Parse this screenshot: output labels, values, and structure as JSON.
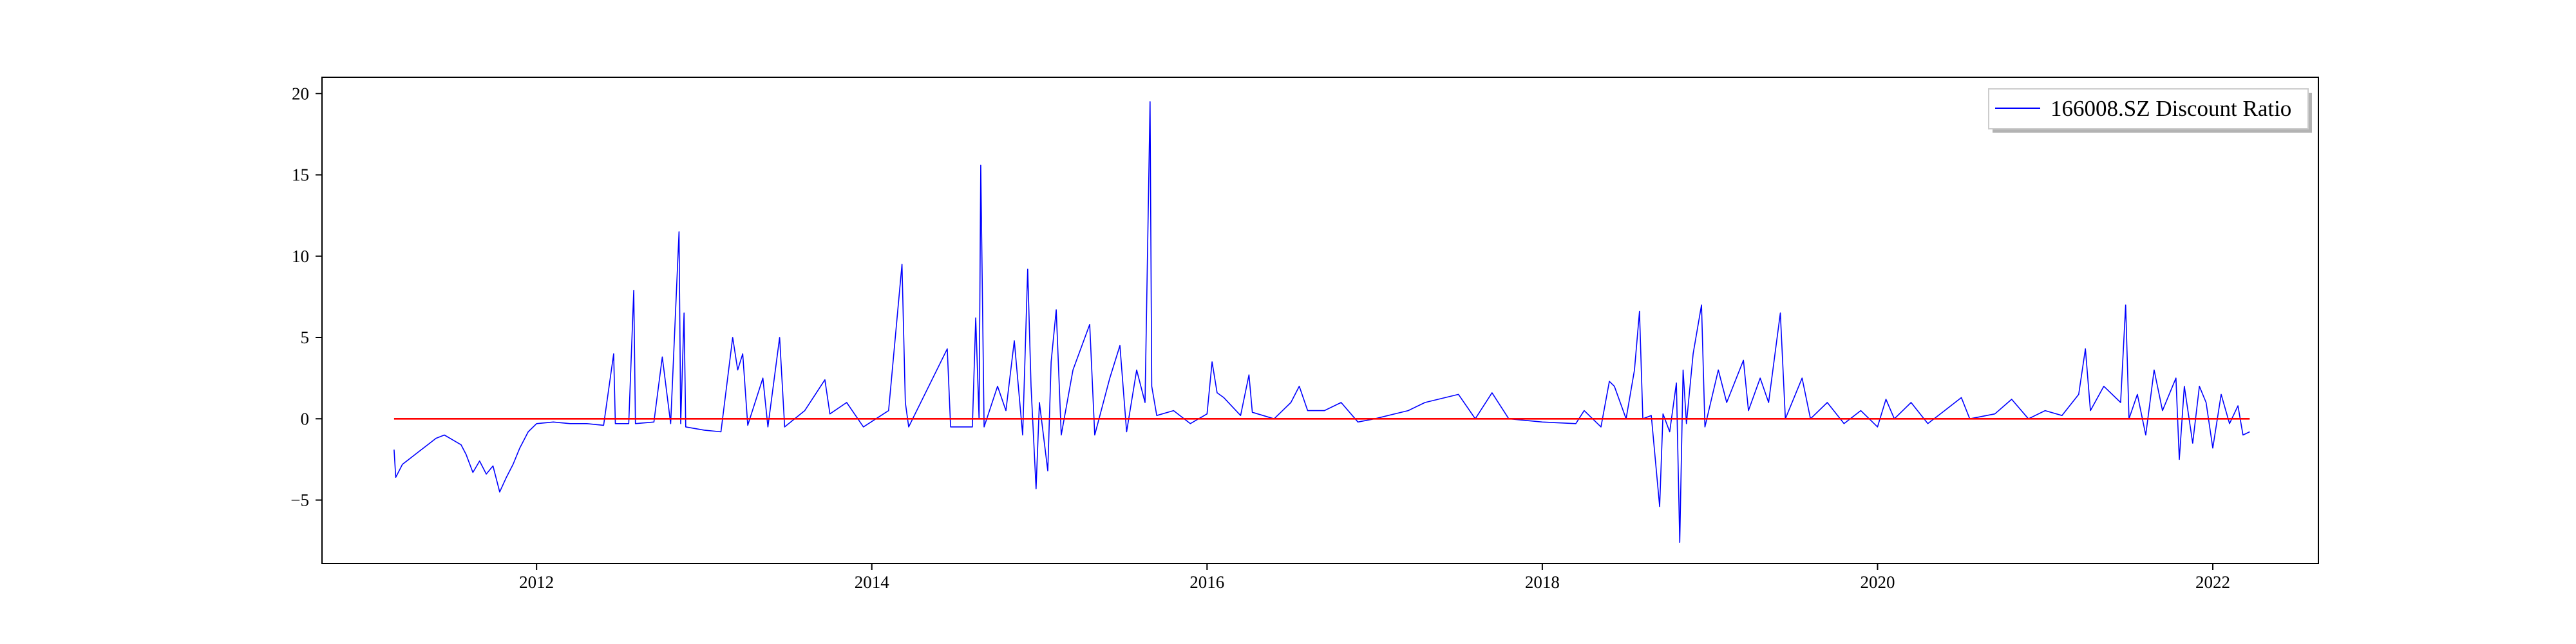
{
  "chart_data": {
    "type": "line",
    "title": "",
    "xlabel": "",
    "ylabel": "",
    "xlim": [
      2010.72,
      2022.63
    ],
    "ylim": [
      -8.9,
      21.0
    ],
    "x_ticks": [
      2012,
      2014,
      2016,
      2018,
      2020,
      2022
    ],
    "y_ticks": [
      -5,
      0,
      5,
      10,
      15,
      20
    ],
    "grid": false,
    "legend": {
      "position": "top-right",
      "entries": [
        "166008.SZ Discount Ratio"
      ]
    },
    "series": [
      {
        "name": "166008.SZ Discount Ratio",
        "color": "#0000ff",
        "points": [
          [
            2011.15,
            -1.9
          ],
          [
            2011.16,
            -3.6
          ],
          [
            2011.2,
            -2.8
          ],
          [
            2011.25,
            -2.4
          ],
          [
            2011.3,
            -2.0
          ],
          [
            2011.35,
            -1.6
          ],
          [
            2011.4,
            -1.2
          ],
          [
            2011.45,
            -1.0
          ],
          [
            2011.5,
            -1.3
          ],
          [
            2011.55,
            -1.6
          ],
          [
            2011.58,
            -2.2
          ],
          [
            2011.62,
            -3.3
          ],
          [
            2011.66,
            -2.6
          ],
          [
            2011.7,
            -3.4
          ],
          [
            2011.74,
            -2.9
          ],
          [
            2011.78,
            -4.5
          ],
          [
            2011.82,
            -3.6
          ],
          [
            2011.86,
            -2.8
          ],
          [
            2011.9,
            -1.8
          ],
          [
            2011.95,
            -0.8
          ],
          [
            2012.0,
            -0.3
          ],
          [
            2012.1,
            -0.2
          ],
          [
            2012.2,
            -0.3
          ],
          [
            2012.3,
            -0.3
          ],
          [
            2012.4,
            -0.4
          ],
          [
            2012.46,
            4.0
          ],
          [
            2012.47,
            -0.3
          ],
          [
            2012.55,
            -0.3
          ],
          [
            2012.58,
            7.9
          ],
          [
            2012.59,
            -0.3
          ],
          [
            2012.7,
            -0.2
          ],
          [
            2012.75,
            3.8
          ],
          [
            2012.8,
            -0.3
          ],
          [
            2012.85,
            11.5
          ],
          [
            2012.86,
            -0.3
          ],
          [
            2012.88,
            6.5
          ],
          [
            2012.89,
            -0.5
          ],
          [
            2013.0,
            -0.7
          ],
          [
            2013.1,
            -0.8
          ],
          [
            2013.17,
            5.0
          ],
          [
            2013.2,
            3.0
          ],
          [
            2013.23,
            4.0
          ],
          [
            2013.26,
            -0.4
          ],
          [
            2013.35,
            2.5
          ],
          [
            2013.38,
            -0.5
          ],
          [
            2013.45,
            5.0
          ],
          [
            2013.48,
            -0.5
          ],
          [
            2013.6,
            0.5
          ],
          [
            2013.72,
            2.4
          ],
          [
            2013.75,
            0.3
          ],
          [
            2013.85,
            1.0
          ],
          [
            2013.95,
            -0.5
          ],
          [
            2014.1,
            0.5
          ],
          [
            2014.18,
            9.5
          ],
          [
            2014.2,
            1.0
          ],
          [
            2014.22,
            -0.5
          ],
          [
            2014.45,
            4.3
          ],
          [
            2014.47,
            -0.5
          ],
          [
            2014.6,
            -0.5
          ],
          [
            2014.62,
            6.2
          ],
          [
            2014.64,
            0.0
          ],
          [
            2014.65,
            15.6
          ],
          [
            2014.67,
            -0.5
          ],
          [
            2014.75,
            2.0
          ],
          [
            2014.8,
            0.5
          ],
          [
            2014.85,
            4.8
          ],
          [
            2014.9,
            -1.0
          ],
          [
            2014.93,
            9.2
          ],
          [
            2014.95,
            2.0
          ],
          [
            2014.98,
            -4.3
          ],
          [
            2015.0,
            1.0
          ],
          [
            2015.05,
            -3.2
          ],
          [
            2015.07,
            3.5
          ],
          [
            2015.1,
            6.7
          ],
          [
            2015.13,
            -1.0
          ],
          [
            2015.2,
            3.0
          ],
          [
            2015.3,
            5.8
          ],
          [
            2015.33,
            -1.0
          ],
          [
            2015.42,
            2.5
          ],
          [
            2015.48,
            4.5
          ],
          [
            2015.52,
            -0.8
          ],
          [
            2015.58,
            3.0
          ],
          [
            2015.63,
            1.0
          ],
          [
            2015.66,
            19.5
          ],
          [
            2015.67,
            2.0
          ],
          [
            2015.7,
            0.2
          ],
          [
            2015.8,
            0.5
          ],
          [
            2015.9,
            -0.3
          ],
          [
            2016.0,
            0.3
          ],
          [
            2016.03,
            3.5
          ],
          [
            2016.06,
            1.6
          ],
          [
            2016.1,
            1.3
          ],
          [
            2016.2,
            0.2
          ],
          [
            2016.25,
            2.7
          ],
          [
            2016.27,
            0.4
          ],
          [
            2016.4,
            0.0
          ],
          [
            2016.5,
            1.0
          ],
          [
            2016.55,
            2.0
          ],
          [
            2016.6,
            0.5
          ],
          [
            2016.7,
            0.5
          ],
          [
            2016.8,
            1.0
          ],
          [
            2016.9,
            -0.2
          ],
          [
            2017.0,
            0.0
          ],
          [
            2017.2,
            0.5
          ],
          [
            2017.3,
            1.0
          ],
          [
            2017.5,
            1.5
          ],
          [
            2017.6,
            0.0
          ],
          [
            2017.7,
            1.6
          ],
          [
            2017.8,
            0.0
          ],
          [
            2018.0,
            -0.2
          ],
          [
            2018.2,
            -0.3
          ],
          [
            2018.25,
            0.5
          ],
          [
            2018.35,
            -0.5
          ],
          [
            2018.4,
            2.3
          ],
          [
            2018.43,
            2.0
          ],
          [
            2018.5,
            0.0
          ],
          [
            2018.55,
            3.0
          ],
          [
            2018.58,
            6.6
          ],
          [
            2018.6,
            0.0
          ],
          [
            2018.65,
            0.2
          ],
          [
            2018.7,
            -5.4
          ],
          [
            2018.72,
            0.3
          ],
          [
            2018.76,
            -0.8
          ],
          [
            2018.8,
            2.2
          ],
          [
            2018.82,
            -7.6
          ],
          [
            2018.84,
            3.0
          ],
          [
            2018.86,
            -0.3
          ],
          [
            2018.9,
            4.0
          ],
          [
            2018.95,
            7.0
          ],
          [
            2018.97,
            -0.5
          ],
          [
            2019.05,
            3.0
          ],
          [
            2019.1,
            1.0
          ],
          [
            2019.2,
            3.6
          ],
          [
            2019.23,
            0.5
          ],
          [
            2019.3,
            2.5
          ],
          [
            2019.35,
            1.0
          ],
          [
            2019.42,
            6.5
          ],
          [
            2019.45,
            0.0
          ],
          [
            2019.55,
            2.5
          ],
          [
            2019.6,
            0.0
          ],
          [
            2019.7,
            1.0
          ],
          [
            2019.8,
            -0.3
          ],
          [
            2019.9,
            0.5
          ],
          [
            2020.0,
            -0.5
          ],
          [
            2020.05,
            1.2
          ],
          [
            2020.1,
            0.0
          ],
          [
            2020.2,
            1.0
          ],
          [
            2020.3,
            -0.3
          ],
          [
            2020.4,
            0.5
          ],
          [
            2020.5,
            1.3
          ],
          [
            2020.55,
            0.0
          ],
          [
            2020.7,
            0.3
          ],
          [
            2020.8,
            1.2
          ],
          [
            2020.9,
            0.0
          ],
          [
            2021.0,
            0.5
          ],
          [
            2021.1,
            0.2
          ],
          [
            2021.2,
            1.5
          ],
          [
            2021.24,
            4.3
          ],
          [
            2021.27,
            0.5
          ],
          [
            2021.35,
            2.0
          ],
          [
            2021.45,
            1.0
          ],
          [
            2021.48,
            7.0
          ],
          [
            2021.5,
            0.0
          ],
          [
            2021.55,
            1.5
          ],
          [
            2021.6,
            -1.0
          ],
          [
            2021.65,
            3.0
          ],
          [
            2021.7,
            0.5
          ],
          [
            2021.78,
            2.5
          ],
          [
            2021.8,
            -2.5
          ],
          [
            2021.83,
            2.0
          ],
          [
            2021.88,
            -1.5
          ],
          [
            2021.92,
            2.0
          ],
          [
            2021.96,
            1.0
          ],
          [
            2022.0,
            -1.8
          ],
          [
            2022.05,
            1.5
          ],
          [
            2022.1,
            -0.3
          ],
          [
            2022.15,
            0.8
          ],
          [
            2022.18,
            -1.0
          ],
          [
            2022.22,
            -0.8
          ]
        ]
      },
      {
        "name": "",
        "color": "#ff0000",
        "points": [
          [
            2011.15,
            0.0
          ],
          [
            2022.22,
            0.0
          ]
        ]
      }
    ]
  }
}
